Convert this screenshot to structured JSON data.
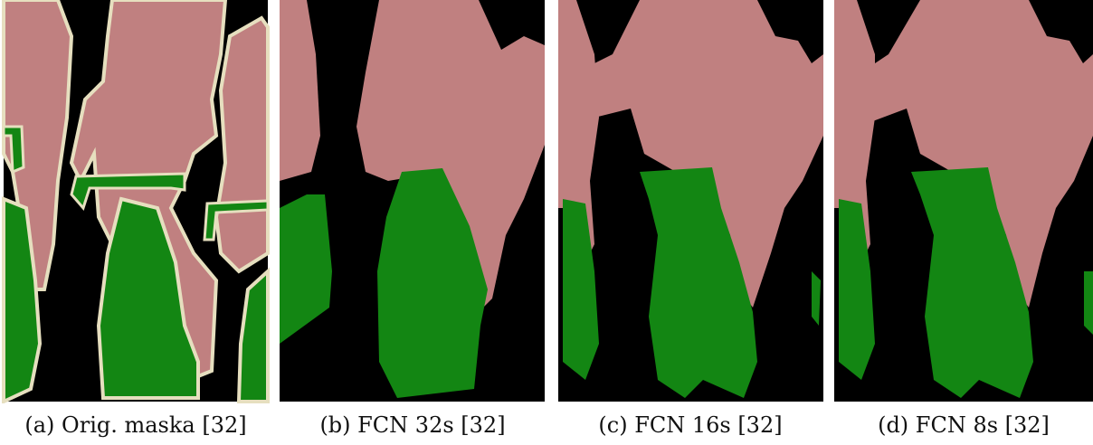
{
  "figure": {
    "panels": [
      {
        "caption": "(a) Orig. maska [32]"
      },
      {
        "caption": "(b) FCN 32s [32]"
      },
      {
        "caption": "(c) FCN 16s [32]"
      },
      {
        "caption": "(d) FCN 8s [32]"
      }
    ]
  }
}
